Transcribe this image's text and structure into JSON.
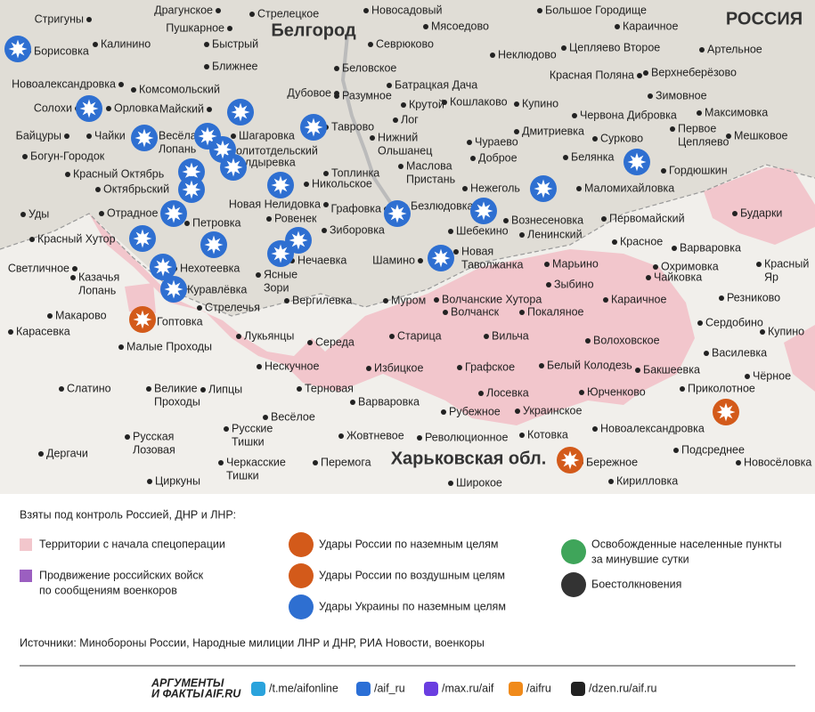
{
  "map": {
    "region_labels": [
      "РОССИЯ",
      "Белгород",
      "Харьковская обл."
    ],
    "places": [
      "Стригуны",
      "Драгунское",
      "Стрелецкое",
      "Новосадовый",
      "Большое Городище",
      "Борисовка",
      "Калинино",
      "Пушкарное",
      "Мясоедово",
      "Караичное",
      "Быстрый",
      "Севрюково",
      "Неклюдово",
      "Цепляево Второе",
      "Артельное",
      "Новоалександровка",
      "Ближнее",
      "Беловское",
      "Красная Поляна",
      "Верхнеберёзово",
      "Комсомольский",
      "Дубовое",
      "Батрацкая Дача",
      "Зимовное",
      "Солохи",
      "Орловка",
      "Майский",
      "Разумное",
      "Крутой",
      "Кошлаково",
      "Купино",
      "Червона Дибровка",
      "Максимовка",
      "Байцуры",
      "Чайки",
      [
        "Весёлая",
        "Лопань"
      ],
      "Шагаровка",
      "Лог",
      [
        "Нижний",
        "Ольшанец"
      ],
      "Таврово",
      "Дмитриевка",
      [
        "Первое",
        "Цепляево"
      ],
      "Мешковое",
      "Сурково",
      "Богун-Городок",
      "Политотдельский",
      "Чураево",
      "Доброе",
      "Белянка",
      "Гордюшкин",
      "Красный Октябрь",
      "Болдыревка",
      "Топлинка",
      [
        "Маслова",
        "Пристань"
      ],
      "Октябрьский",
      "Никольское",
      "Нежеголь",
      "Маломихайловка",
      "Бударки",
      "Новая Нелидовка",
      "Графовка",
      "Безлюдовка",
      "Уды",
      "Отрадное",
      "Ровенек",
      "Вознесеновка",
      "Первомайский",
      "Петровка",
      "Зиборовка",
      "Шебекино",
      "Ленинский",
      "Красный Хутор",
      "Красное",
      "Варваровка",
      [
        "Красный",
        "Яр"
      ],
      [
        "Новая",
        "Таволжанка"
      ],
      "Нечаевка",
      "Шамино",
      "Охримовка",
      "Марьино",
      "Светличное",
      [
        "Казачья",
        "Лопань"
      ],
      "Нехотеевка",
      [
        "Ясные",
        "Зори"
      ],
      "Зыбино",
      "Чайковка",
      "Журавлёвка",
      "Резниково",
      "Вергилевка",
      "Муром",
      "Волчанские Хутора",
      "Караичное",
      "Стрелечья",
      "Волчанск",
      "Покаляное",
      "Макарово",
      "Гоптовка",
      "Сердобино",
      "Карасевка",
      "Лукьянцы",
      "Старица",
      "Вильча",
      "Купино",
      "Волоховское",
      "Малые Проходы",
      "Середа",
      "Василевка",
      "Нескучное",
      "Избицкое",
      "Графское",
      "Белый Колодезь",
      "Бакшеевка",
      "Чёрное",
      "Терновая",
      "Приколотное",
      [
        "Великие",
        "Проходы"
      ],
      "Липцы",
      "Слатино",
      "Лосевка",
      "Юрченково",
      "Варваровка",
      "Весёлое",
      "Рубежное",
      "Украинское",
      "Новоалександровка",
      [
        "Русские",
        "Тишки"
      ],
      [
        "Русская",
        "Лозовая"
      ],
      "Жовтневое",
      "Революционное",
      "Котовка",
      "Подсреднее",
      "Дергачи",
      [
        "Черкасские",
        "Тишки"
      ],
      "Перемога",
      "Бережное",
      "Новосёловка",
      "Широкое",
      "Циркуны",
      "Кирилловка"
    ]
  },
  "legend": {
    "title": "Взяты под контроль Россией, ДНР и ЛНР:",
    "items": [
      [
        "Территории с начала спецоперации"
      ],
      [
        "Продвижение российских войск",
        "по сообщениям военкоров"
      ],
      [
        "Удары России по наземным целям"
      ],
      [
        "Удары России по воздушным целям"
      ],
      [
        "Удары Украины по наземным целям"
      ],
      [
        "Освобожденные населенные пункты",
        "за минувшие сутки"
      ],
      [
        "Боестолкновения"
      ]
    ]
  },
  "sources": "Источники: Минобороны России, Народные милиции ЛНР и ДНР, РИА Новости, военкоры",
  "footer": {
    "logo": [
      "АРГУМЕНТЫ",
      "И ФАКТЫ",
      "AIF.RU"
    ],
    "links": [
      "/t.me/aifonline",
      "/aif_ru",
      "/max.ru/aif",
      "/aifru",
      "/dzen.ru/aif.ru"
    ]
  }
}
